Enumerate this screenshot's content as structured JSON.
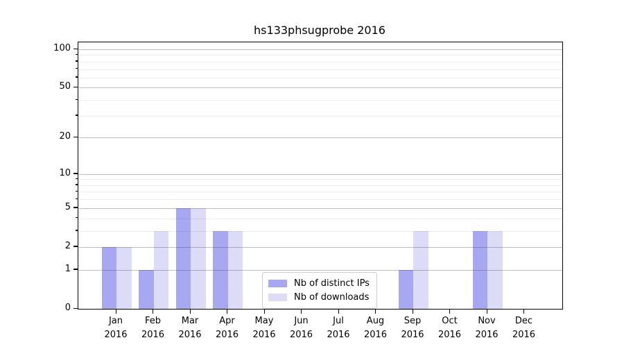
{
  "chart_data": {
    "type": "bar",
    "title": "hs133phsugprobe 2016",
    "categories": [
      "Jan 2016",
      "Feb 2016",
      "Mar 2016",
      "Apr 2016",
      "May 2016",
      "Jun 2016",
      "Jul 2016",
      "Aug 2016",
      "Sep 2016",
      "Oct 2016",
      "Nov 2016",
      "Dec 2016"
    ],
    "series": [
      {
        "name": "Nb of distinct IPs",
        "color": "#a8a8f2",
        "values": [
          2,
          1,
          5,
          3,
          0,
          0,
          0,
          0,
          1,
          0,
          3,
          0
        ]
      },
      {
        "name": "Nb of downloads",
        "color": "#dcdcf8",
        "values": [
          2,
          3,
          5,
          3,
          0,
          0,
          0,
          0,
          3,
          0,
          3,
          0
        ]
      }
    ],
    "xlabel": "",
    "ylabel": "",
    "yscale": "log1p",
    "yticks": [
      0,
      1,
      2,
      5,
      10,
      20,
      50,
      100
    ],
    "yticks_minor": [
      3,
      4,
      6,
      7,
      8,
      9,
      30,
      40,
      60,
      70,
      80,
      90
    ],
    "ylim": [
      0,
      113
    ],
    "grid": true,
    "legend_position": "lower center"
  }
}
